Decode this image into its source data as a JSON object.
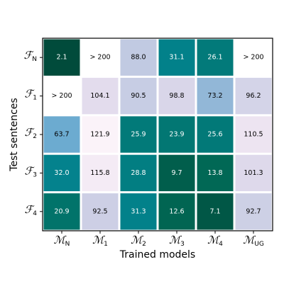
{
  "chart_data": {
    "type": "heatmap",
    "xlabel": "Trained models",
    "ylabel": "Test sentences",
    "columns": [
      {
        "symbol": "ℳ",
        "subscript": "N"
      },
      {
        "symbol": "ℳ",
        "subscript": "1"
      },
      {
        "symbol": "ℳ",
        "subscript": "2"
      },
      {
        "symbol": "ℳ",
        "subscript": "3"
      },
      {
        "symbol": "ℳ",
        "subscript": "4"
      },
      {
        "symbol": "ℳ",
        "subscript": "UG"
      }
    ],
    "rows": [
      {
        "symbol": "ℱ",
        "subscript": "N"
      },
      {
        "symbol": "ℱ",
        "subscript": "1"
      },
      {
        "symbol": "ℱ",
        "subscript": "2"
      },
      {
        "symbol": "ℱ",
        "subscript": "3"
      },
      {
        "symbol": "ℱ",
        "subscript": "4"
      }
    ],
    "values": [
      [
        2.1,
        null,
        88.0,
        31.1,
        26.1,
        null
      ],
      [
        null,
        104.1,
        90.5,
        98.8,
        73.2,
        96.2
      ],
      [
        63.7,
        121.9,
        25.9,
        23.9,
        25.6,
        110.5
      ],
      [
        32.0,
        115.8,
        28.8,
        9.7,
        13.8,
        101.3
      ],
      [
        20.9,
        92.5,
        31.3,
        12.6,
        7.1,
        92.7
      ]
    ],
    "value_labels": [
      [
        "2.1",
        "> 200",
        "88.0",
        "31.1",
        "26.1",
        "> 200"
      ],
      [
        "> 200",
        "104.1",
        "90.5",
        "98.8",
        "73.2",
        "96.2"
      ],
      [
        "63.7",
        "121.9",
        "25.9",
        "23.9",
        "25.6",
        "110.5"
      ],
      [
        "32.0",
        "115.8",
        "28.8",
        "9.7",
        "13.8",
        "101.3"
      ],
      [
        "20.9",
        "92.5",
        "31.3",
        "12.6",
        "7.1",
        "92.7"
      ]
    ],
    "colormap": [
      "#014636",
      "#016c59",
      "#02818a",
      "#3690c0",
      "#67a9cf",
      "#a6bddb",
      "#d0d1e6",
      "#ece2f0",
      "#fff7fb"
    ],
    "color_range": [
      0,
      125
    ],
    "missing_color": "#ffffff"
  }
}
